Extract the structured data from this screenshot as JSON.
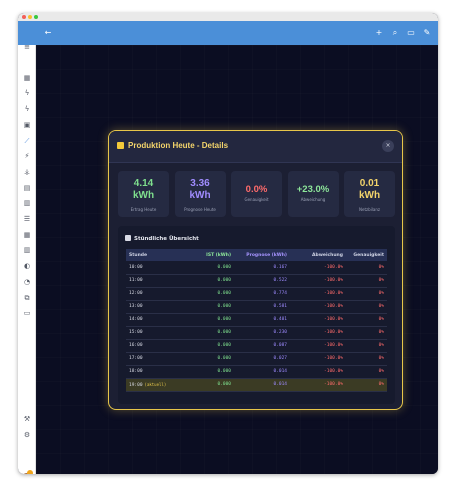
{
  "window": {
    "dots": [
      "#f25f58",
      "#fbbe2e",
      "#39c840"
    ]
  },
  "appbar": {
    "back_icon": "arrow-left-icon",
    "actions": [
      {
        "name": "add-icon",
        "glyph": "+"
      },
      {
        "name": "search-icon",
        "glyph": "⌕"
      },
      {
        "name": "chat-icon",
        "glyph": "▭"
      },
      {
        "name": "edit-icon",
        "glyph": "✎"
      }
    ]
  },
  "sidebar": {
    "items": [
      {
        "name": "menu-icon",
        "glyph": "≡"
      },
      {
        "name": "dashboard-icon",
        "glyph": "▦"
      },
      {
        "name": "bolt-icon",
        "glyph": "ϟ"
      },
      {
        "name": "energy-icon",
        "glyph": "ϟ"
      },
      {
        "name": "monitor-icon",
        "glyph": "▣"
      },
      {
        "name": "chart-line-icon",
        "glyph": "⟋",
        "active": true
      },
      {
        "name": "flash-icon",
        "glyph": "⚡"
      },
      {
        "name": "tower-icon",
        "glyph": "⚶"
      },
      {
        "name": "panel-icon",
        "glyph": "▤"
      },
      {
        "name": "bar-chart-icon",
        "glyph": "▥"
      },
      {
        "name": "list-icon",
        "glyph": "☰"
      },
      {
        "name": "calendar-icon",
        "glyph": "▦"
      },
      {
        "name": "database-icon",
        "glyph": "▥"
      },
      {
        "name": "compass-icon",
        "glyph": "◐"
      },
      {
        "name": "gauge-icon",
        "glyph": "◔"
      },
      {
        "name": "code-icon",
        "glyph": "⧉"
      },
      {
        "name": "terminal-icon",
        "glyph": "▭"
      }
    ],
    "bottom": [
      {
        "name": "hammer-icon",
        "glyph": "⚒"
      },
      {
        "name": "settings-icon",
        "glyph": "⚙"
      }
    ]
  },
  "modal": {
    "title": "Produktion Heute - Details",
    "close": "×",
    "cards": [
      {
        "value": "4.14",
        "unit": "kWh",
        "label": "Ertrag Heute",
        "color": "#7fe08e"
      },
      {
        "value": "3.36",
        "unit": "kWh",
        "label": "Prognose Heute",
        "color": "#a08cff"
      },
      {
        "value": "0.0%",
        "unit": "",
        "label": "Genauigkeit",
        "color": "#ff6b6b"
      },
      {
        "value": "+23.0%",
        "unit": "",
        "label": "Abweichung",
        "color": "#8de69a"
      },
      {
        "value": "0.01",
        "unit": "kWh",
        "label": "Netzbilanz",
        "color": "#f3d46b"
      }
    ],
    "section_title": "Stündliche Übersicht",
    "columns": [
      "Stunde",
      "IST (kWh)",
      "Prognose (kWh)",
      "Abweichung",
      "Genauigkeit"
    ],
    "rows": [
      {
        "hour": "10:00",
        "ist": "0.000",
        "prog": "0.167",
        "dev": "-100.0%",
        "acc": "0%"
      },
      {
        "hour": "11:00",
        "ist": "0.000",
        "prog": "0.522",
        "dev": "-100.0%",
        "acc": "0%"
      },
      {
        "hour": "12:00",
        "ist": "0.000",
        "prog": "0.774",
        "dev": "-100.0%",
        "acc": "0%"
      },
      {
        "hour": "13:00",
        "ist": "0.000",
        "prog": "0.581",
        "dev": "-100.0%",
        "acc": "0%"
      },
      {
        "hour": "14:00",
        "ist": "0.000",
        "prog": "0.401",
        "dev": "-100.0%",
        "acc": "0%"
      },
      {
        "hour": "15:00",
        "ist": "0.000",
        "prog": "0.230",
        "dev": "-100.0%",
        "acc": "0%"
      },
      {
        "hour": "16:00",
        "ist": "0.000",
        "prog": "0.087",
        "dev": "-100.0%",
        "acc": "0%"
      },
      {
        "hour": "17:00",
        "ist": "0.000",
        "prog": "0.027",
        "dev": "-100.0%",
        "acc": "0%"
      },
      {
        "hour": "18:00",
        "ist": "0.000",
        "prog": "0.014",
        "dev": "-100.0%",
        "acc": "0%"
      },
      {
        "hour": "19:00",
        "tag": "(aktuell)",
        "ist": "0.000",
        "prog": "0.014",
        "dev": "-100.0%",
        "acc": "0%",
        "current": true
      }
    ]
  }
}
